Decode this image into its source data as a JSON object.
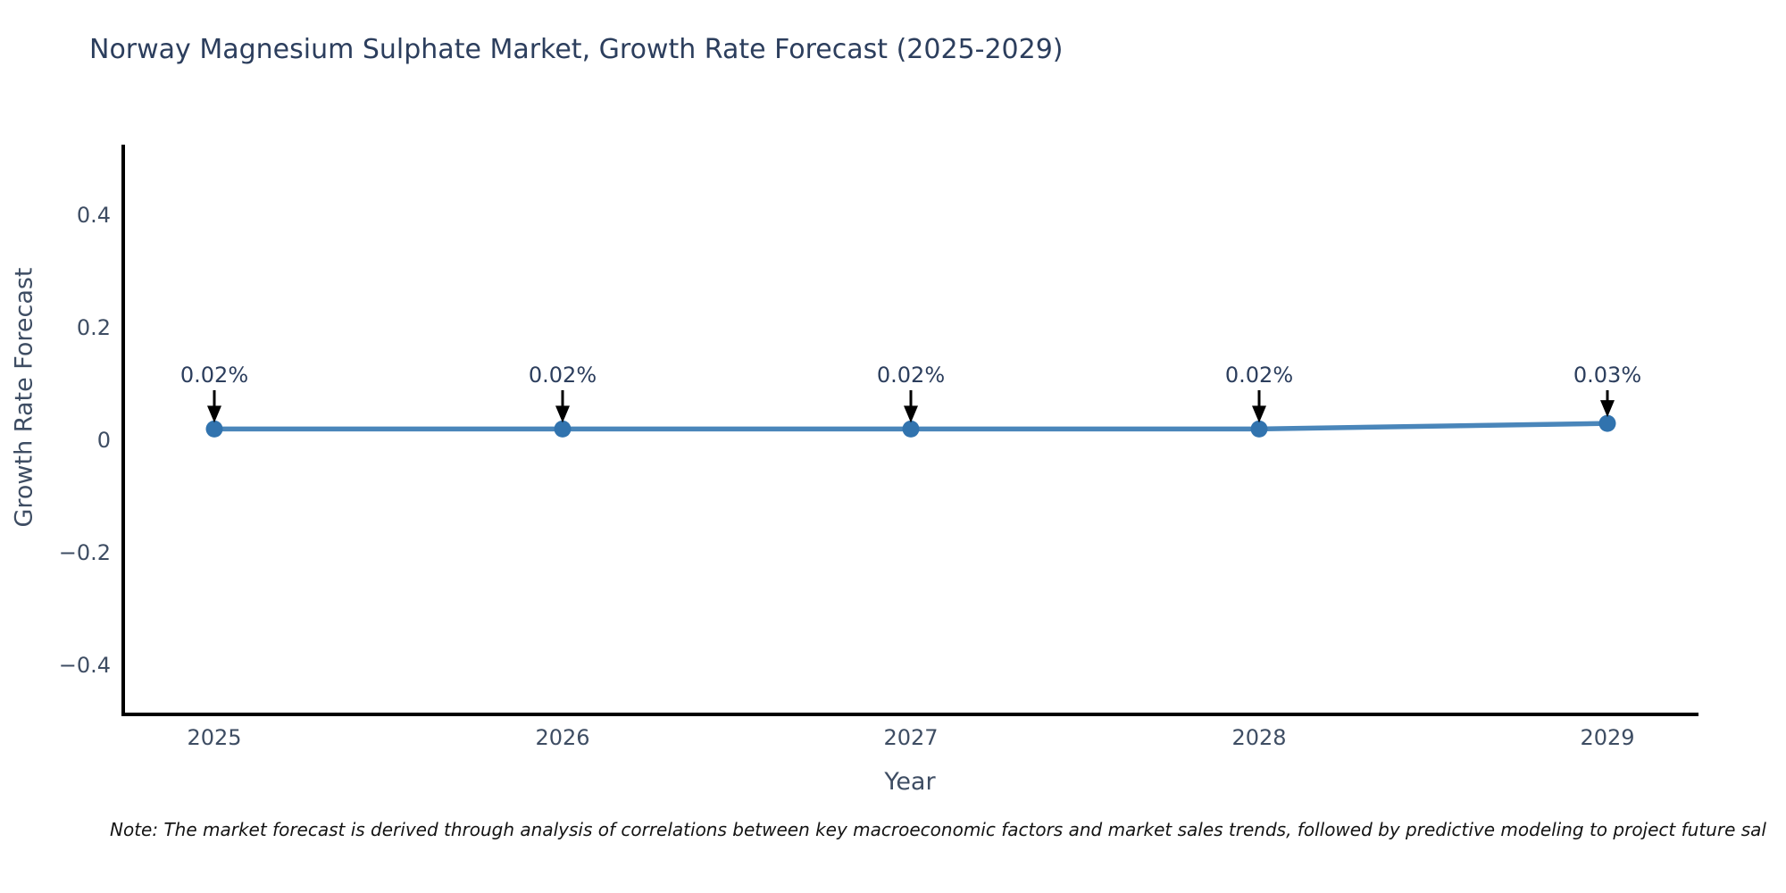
{
  "page": {
    "background": "#ffffff"
  },
  "chart_data": {
    "type": "line",
    "title": "Norway Magnesium Sulphate Market, Growth Rate Forecast (2025-2029)",
    "xlabel": "Year",
    "ylabel": "Growth Rate Forecast",
    "categories": [
      "2025",
      "2026",
      "2027",
      "2028",
      "2029"
    ],
    "series": [
      {
        "name": "Growth Rate Forecast",
        "values": [
          0.02,
          0.02,
          0.02,
          0.02,
          0.03
        ],
        "labels": [
          "0.02%",
          "0.02%",
          "0.02%",
          "0.02%",
          "0.03%"
        ]
      }
    ],
    "y_ticks": [
      0.4,
      0.2,
      0,
      -0.2,
      -0.4
    ],
    "y_tick_labels": [
      "0.4",
      "0.2",
      "0",
      "−0.2",
      "−0.4"
    ],
    "ylim": [
      -0.49,
      0.53
    ],
    "grid": false,
    "legend_position": "none",
    "colors": {
      "line": "#4a86ba",
      "marker": "#3173ae",
      "arrow": "#000000",
      "axis": "#000000",
      "title_text": "#2c3e5d",
      "tick_text": "#3e4d63"
    }
  },
  "note": {
    "text": "Note: The market forecast is derived through analysis of correlations between key macroeconomic factors and market sales trends, followed by predictive modeling to project future sal"
  }
}
